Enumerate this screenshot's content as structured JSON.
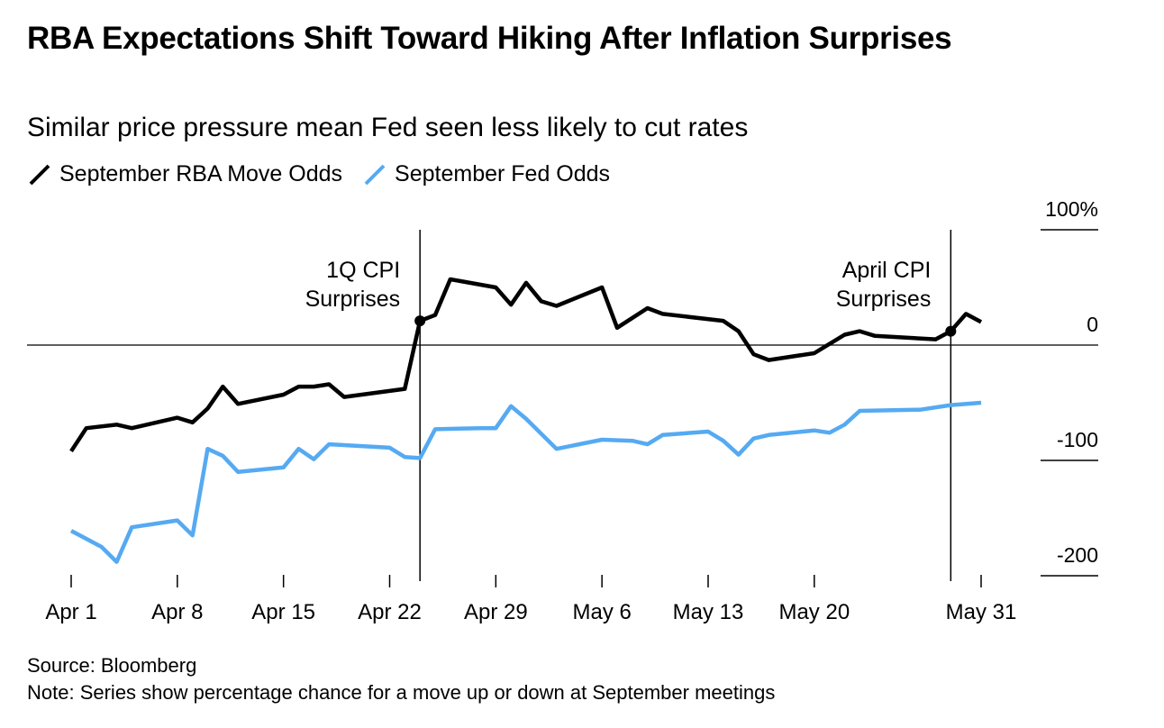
{
  "header": {
    "title": "RBA Expectations Shift Toward Hiking After Inflation Surprises",
    "subtitle": "Similar price pressure mean Fed seen less likely to cut rates"
  },
  "legend": {
    "items": [
      {
        "label": "September RBA Move Odds",
        "color": "#000000"
      },
      {
        "label": "September Fed Odds",
        "color": "#55aaf2"
      }
    ]
  },
  "footer": {
    "source": "Source: Bloomberg",
    "note": "Note: Series show percentage chance for a move up or down at September meetings"
  },
  "chart_data": {
    "type": "line",
    "x_axis": {
      "tick_labels": [
        "Apr 1",
        "Apr 8",
        "Apr 15",
        "Apr 22",
        "Apr 29",
        "May 6",
        "May 13",
        "May 20",
        "May 31"
      ],
      "tick_dates": [
        "2024-04-01",
        "2024-04-08",
        "2024-04-15",
        "2024-04-22",
        "2024-04-29",
        "2024-05-06",
        "2024-05-13",
        "2024-05-20",
        "2024-05-31"
      ],
      "range": [
        "2024-04-01",
        "2024-05-31"
      ]
    },
    "y_axis": {
      "ticks": [
        100,
        0,
        -100,
        -200
      ],
      "tick_labels": [
        "100%",
        "0",
        "-100",
        "-200"
      ],
      "range": [
        -200,
        100
      ]
    },
    "zero_line": true,
    "annotations": [
      {
        "date": "2024-04-24",
        "label_lines": [
          "1Q CPI",
          "Surprises"
        ]
      },
      {
        "date": "2024-05-29",
        "label_lines": [
          "April CPI",
          "Surprises"
        ]
      }
    ],
    "series": [
      {
        "name": "September RBA Move Odds",
        "color": "#000000",
        "points": [
          [
            "2024-04-01",
            -92
          ],
          [
            "2024-04-02",
            -72
          ],
          [
            "2024-04-04",
            -69
          ],
          [
            "2024-04-05",
            -72
          ],
          [
            "2024-04-08",
            -63
          ],
          [
            "2024-04-09",
            -67
          ],
          [
            "2024-04-10",
            -55
          ],
          [
            "2024-04-11",
            -36
          ],
          [
            "2024-04-12",
            -51
          ],
          [
            "2024-04-15",
            -43
          ],
          [
            "2024-04-16",
            -36
          ],
          [
            "2024-04-17",
            -36
          ],
          [
            "2024-04-18",
            -34
          ],
          [
            "2024-04-19",
            -45
          ],
          [
            "2024-04-23",
            -38
          ],
          [
            "2024-04-24",
            21
          ],
          [
            "2024-04-25",
            26
          ],
          [
            "2024-04-26",
            57
          ],
          [
            "2024-04-29",
            50
          ],
          [
            "2024-04-30",
            35
          ],
          [
            "2024-05-01",
            54
          ],
          [
            "2024-05-02",
            38
          ],
          [
            "2024-05-03",
            34
          ],
          [
            "2024-05-06",
            50
          ],
          [
            "2024-05-07",
            15
          ],
          [
            "2024-05-09",
            32
          ],
          [
            "2024-05-10",
            27
          ],
          [
            "2024-05-14",
            21
          ],
          [
            "2024-05-15",
            12
          ],
          [
            "2024-05-16",
            -8
          ],
          [
            "2024-05-17",
            -13
          ],
          [
            "2024-05-20",
            -7
          ],
          [
            "2024-05-22",
            9
          ],
          [
            "2024-05-23",
            12
          ],
          [
            "2024-05-24",
            8
          ],
          [
            "2024-05-28",
            5
          ],
          [
            "2024-05-29",
            12
          ],
          [
            "2024-05-30",
            27
          ],
          [
            "2024-05-31",
            20
          ]
        ]
      },
      {
        "name": "September Fed Odds",
        "color": "#55aaf2",
        "points": [
          [
            "2024-04-01",
            -161
          ],
          [
            "2024-04-02",
            -168
          ],
          [
            "2024-04-03",
            -175
          ],
          [
            "2024-04-04",
            -188
          ],
          [
            "2024-04-05",
            -158
          ],
          [
            "2024-04-08",
            -152
          ],
          [
            "2024-04-09",
            -165
          ],
          [
            "2024-04-10",
            -90
          ],
          [
            "2024-04-11",
            -96
          ],
          [
            "2024-04-12",
            -110
          ],
          [
            "2024-04-15",
            -106
          ],
          [
            "2024-04-16",
            -90
          ],
          [
            "2024-04-17",
            -99
          ],
          [
            "2024-04-18",
            -86
          ],
          [
            "2024-04-22",
            -89
          ],
          [
            "2024-04-23",
            -97
          ],
          [
            "2024-04-24",
            -98
          ],
          [
            "2024-04-25",
            -73
          ],
          [
            "2024-04-28",
            -72
          ],
          [
            "2024-04-29",
            -72
          ],
          [
            "2024-04-30",
            -53
          ],
          [
            "2024-05-01",
            -64
          ],
          [
            "2024-05-03",
            -90
          ],
          [
            "2024-05-06",
            -82
          ],
          [
            "2024-05-08",
            -83
          ],
          [
            "2024-05-09",
            -86
          ],
          [
            "2024-05-10",
            -78
          ],
          [
            "2024-05-13",
            -75
          ],
          [
            "2024-05-14",
            -83
          ],
          [
            "2024-05-15",
            -95
          ],
          [
            "2024-05-16",
            -81
          ],
          [
            "2024-05-17",
            -78
          ],
          [
            "2024-05-20",
            -74
          ],
          [
            "2024-05-21",
            -76
          ],
          [
            "2024-05-22",
            -69
          ],
          [
            "2024-05-23",
            -57
          ],
          [
            "2024-05-27",
            -56
          ],
          [
            "2024-05-29",
            -52
          ],
          [
            "2024-05-31",
            -50
          ]
        ]
      }
    ]
  }
}
